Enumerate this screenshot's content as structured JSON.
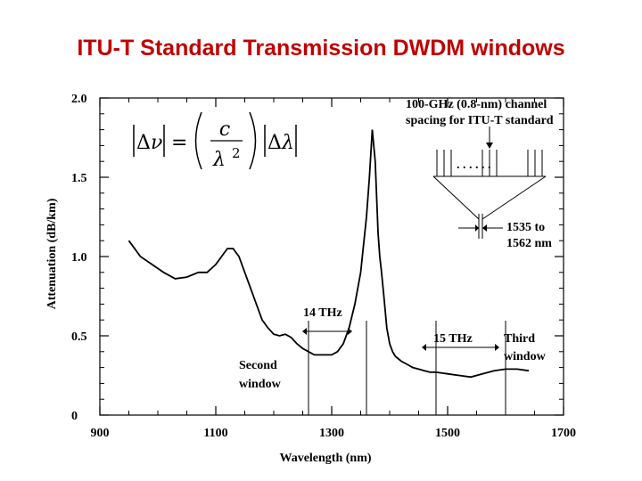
{
  "slide": {
    "title": "ITU-T Standard Transmission DWDM windows"
  },
  "chart_data": {
    "type": "line",
    "title": "",
    "xlabel": "Wavelength (nm)",
    "ylabel": "Attenuation (dB/km)",
    "xlim": [
      900,
      1700
    ],
    "ylim": [
      0,
      2.0
    ],
    "x_ticks": [
      900,
      1100,
      1300,
      1500,
      1700
    ],
    "y_ticks": [
      0,
      0.5,
      1.0,
      1.5,
      2.0
    ],
    "x_tick_labels": [
      "900",
      "1100",
      "1300",
      "1500",
      "1700"
    ],
    "y_tick_labels": [
      "0",
      "0.5",
      "1.0",
      "1.5",
      "2.0"
    ],
    "grid": false,
    "series": [
      {
        "x": [
          950,
          970,
          990,
          1010,
          1030,
          1050,
          1070,
          1085,
          1100,
          1110,
          1120,
          1130,
          1140,
          1150,
          1160,
          1170,
          1180,
          1190,
          1200,
          1210,
          1220,
          1230,
          1240,
          1250,
          1260,
          1270,
          1280,
          1290,
          1300,
          1310,
          1320,
          1330,
          1340,
          1350,
          1360,
          1365,
          1370,
          1375,
          1380,
          1383,
          1386,
          1390,
          1395,
          1400,
          1405,
          1410,
          1420,
          1430,
          1440,
          1450,
          1460,
          1470,
          1480,
          1500,
          1520,
          1540,
          1560,
          1580,
          1600,
          1620,
          1640
        ],
        "y": [
          1.1,
          1.0,
          0.95,
          0.9,
          0.86,
          0.87,
          0.9,
          0.9,
          0.95,
          1.0,
          1.05,
          1.05,
          1.0,
          0.9,
          0.8,
          0.7,
          0.6,
          0.55,
          0.51,
          0.5,
          0.51,
          0.49,
          0.45,
          0.42,
          0.4,
          0.38,
          0.38,
          0.38,
          0.38,
          0.4,
          0.45,
          0.55,
          0.7,
          0.9,
          1.25,
          1.5,
          1.8,
          1.6,
          1.15,
          1.0,
          0.9,
          0.75,
          0.55,
          0.45,
          0.4,
          0.37,
          0.34,
          0.32,
          0.3,
          0.29,
          0.28,
          0.27,
          0.27,
          0.26,
          0.25,
          0.24,
          0.26,
          0.28,
          0.29,
          0.29,
          0.28
        ]
      }
    ],
    "annotations": {
      "top_note_line1": "100-GHz (0.8-nm) channel",
      "top_note_line2": "spacing for ITU-T standard",
      "channel_dots": ". . .   . . .",
      "range_line1": "1535 to",
      "range_line2": "1562 nm",
      "thz_14": "14 THz",
      "thz_15": "15 THz",
      "second_window_line1": "Second",
      "second_window_line2": "window",
      "third_window_line1": "Third",
      "third_window_line2": "window"
    },
    "markers_x": [
      1260,
      1360,
      1480,
      1600
    ]
  }
}
